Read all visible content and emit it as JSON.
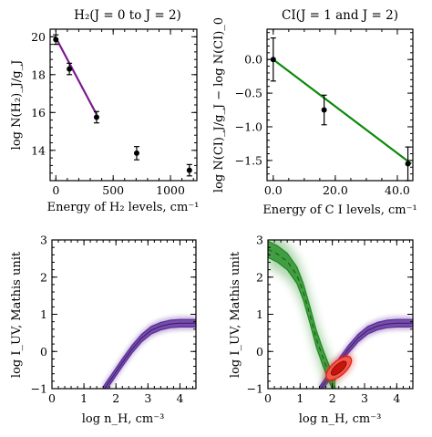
{
  "chart_data": [
    {
      "type": "scatter",
      "panel": "top-left",
      "title": "H₂(J = 0 to J = 2)",
      "xlabel": "Energy of H₂ levels, cm⁻¹",
      "ylabel": "log N(H₂)_J/g_J",
      "xlim": [
        -50,
        1230
      ],
      "ylim": [
        12.4,
        20.4
      ],
      "xticks": [
        0,
        500,
        1000
      ],
      "yticks": [
        14,
        16,
        18,
        20
      ],
      "points": [
        {
          "x": 0,
          "y": 19.85,
          "err": 0.25
        },
        {
          "x": 118,
          "y": 18.3,
          "err": 0.3
        },
        {
          "x": 355,
          "y": 15.75,
          "err": 0.3
        },
        {
          "x": 705,
          "y": 13.85,
          "err": 0.35
        },
        {
          "x": 1165,
          "y": 12.95,
          "err": 0.3
        }
      ],
      "fit_line": {
        "x": [
          0,
          355
        ],
        "y": [
          19.95,
          15.9
        ],
        "color": "#7b1a8f"
      }
    },
    {
      "type": "scatter",
      "panel": "top-right",
      "title": "CI(J = 1 and J = 2)",
      "xlabel": "Energy of C I levels, cm⁻¹",
      "ylabel": "log N(CI)_J/g_J − log N(CI)_0",
      "xlim": [
        -2,
        45
      ],
      "ylim": [
        -1.8,
        0.45
      ],
      "xticks": [
        0,
        20,
        40
      ],
      "yticks": [
        0.0,
        -0.5,
        -1.0,
        -1.5
      ],
      "points": [
        {
          "x": 0,
          "y": 0.0,
          "err": 0.32
        },
        {
          "x": 16.4,
          "y": -0.75,
          "err": 0.22
        },
        {
          "x": 43.4,
          "y": -1.55,
          "err": 0.25
        }
      ],
      "fit_line": {
        "x": [
          0,
          44.5
        ],
        "y": [
          0.0,
          -1.55
        ],
        "color": "#0a8a0a"
      }
    },
    {
      "type": "area",
      "panel": "bottom-left",
      "xlabel": "log  n_H, cm⁻³",
      "ylabel": "log  I_UV, Mathis unit",
      "xlim": [
        0,
        4.5
      ],
      "ylim": [
        -1,
        3
      ],
      "xticks": [
        0,
        1,
        2,
        3,
        4
      ],
      "yticks": [
        -1,
        0,
        1,
        2,
        3
      ],
      "series": [
        {
          "x": [
            1.6,
            1.9,
            2.2,
            2.5,
            2.8,
            3.1,
            3.4,
            3.7,
            4.0,
            4.3,
            4.5
          ],
          "y": [
            -1.05,
            -0.68,
            -0.3,
            0.06,
            0.36,
            0.57,
            0.68,
            0.74,
            0.76,
            0.76,
            0.76
          ],
          "band": 0.1,
          "color": "#5b2b9a"
        }
      ]
    },
    {
      "type": "area",
      "panel": "bottom-right",
      "xlabel": "log  n_H, cm⁻³",
      "ylabel": "log  I_UV, Mathis unit",
      "xlim": [
        0,
        4.5
      ],
      "ylim": [
        -1,
        3
      ],
      "xticks": [
        0,
        1,
        2,
        3,
        4
      ],
      "yticks": [
        -1,
        0,
        1,
        2,
        3
      ],
      "series": [
        {
          "x": [
            1.6,
            1.9,
            2.2,
            2.5,
            2.8,
            3.1,
            3.4,
            3.7,
            4.0,
            4.3,
            4.5
          ],
          "y": [
            -1.05,
            -0.68,
            -0.3,
            0.06,
            0.36,
            0.57,
            0.68,
            0.74,
            0.76,
            0.76,
            0.76
          ],
          "band": 0.1,
          "color": "#5b2b9a"
        },
        {
          "x": [
            0.0,
            0.3,
            0.6,
            0.9,
            1.1,
            1.3,
            1.5,
            1.7,
            1.9,
            2.1
          ],
          "y": [
            2.75,
            2.62,
            2.42,
            2.05,
            1.6,
            1.0,
            0.35,
            -0.15,
            -0.6,
            -1.0
          ],
          "band": 0.22,
          "color": "#1c8a1c"
        }
      ],
      "ellipse": {
        "cx": 2.2,
        "cy": -0.45,
        "rx": 0.35,
        "ry": 0.12,
        "angle_deg": 42,
        "color": "#e0201a"
      }
    }
  ]
}
